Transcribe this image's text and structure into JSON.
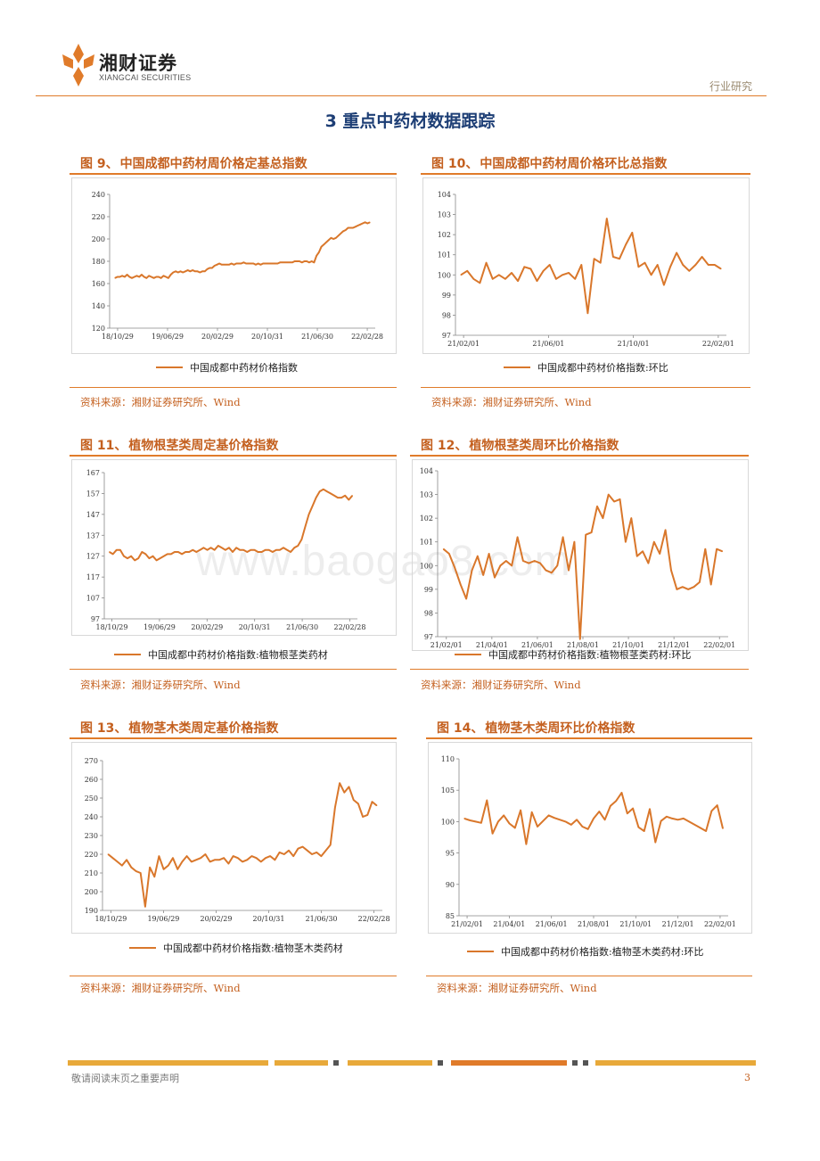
{
  "header": {
    "brand_cn": "湘财证券",
    "brand_en": "XIANGCAI SECURITIES",
    "tag": "行业研究"
  },
  "section_title": "3 重点中药材数据跟踪",
  "colors": {
    "accent": "#e07b2a",
    "line": "#d9772b",
    "title": "#c4601f",
    "navy": "#1d3e75"
  },
  "watermark": "www.baogao8.com",
  "figures": [
    {
      "num": "图 9、",
      "title": "中国成都中药材周价格定基总指数",
      "legend": "中国成都中药材价格指数",
      "source": "资料来源：湘财证券研究所、Wind"
    },
    {
      "num": "图 10、",
      "title": "中国成都中药材周价格环比总指数",
      "legend": "中国成都中药材价格指数:环比",
      "source": "资料来源：湘财证券研究所、Wind"
    },
    {
      "num": "图 11、",
      "title": "植物根茎类周定基价格指数",
      "legend": "中国成都中药材价格指数:植物根茎类药材",
      "source": "资料来源：湘财证券研究所、Wind"
    },
    {
      "num": "图 12、",
      "title": "植物根茎类周环比价格指数",
      "legend": "中国成都中药材价格指数:植物根茎类药材:环比",
      "source": "资料来源：湘财证券研究所、Wind"
    },
    {
      "num": "图 13、",
      "title": "植物茎木类周定基价格指数",
      "legend": "中国成都中药材价格指数:植物茎木类药材",
      "source": "资料来源：湘财证券研究所、Wind"
    },
    {
      "num": "图 14、",
      "title": "植物茎木类周环比价格指数",
      "legend": "中国成都中药材价格指数:植物茎木类药材:环比",
      "source": "资料来源：湘财证券研究所、Wind"
    }
  ],
  "chart_data": [
    {
      "type": "line",
      "ylim": [
        120,
        240
      ],
      "yticks": [
        120,
        140,
        160,
        180,
        200,
        220,
        240
      ],
      "xlim": [
        0,
        1
      ],
      "xtick_labels": [
        "18/10/29",
        "19/06/29",
        "20/02/29",
        "20/10/31",
        "21/06/30",
        "22/02/28"
      ],
      "series": [
        {
          "values": [
            165,
            166,
            166,
            167,
            166,
            168,
            166,
            165,
            166,
            167,
            166,
            168,
            166,
            165,
            167,
            166,
            165,
            166,
            166,
            165,
            167,
            166,
            165,
            168,
            170,
            171,
            170,
            171,
            170,
            171,
            172,
            171,
            172,
            171,
            171,
            170,
            171,
            171,
            173,
            174,
            174,
            176,
            177,
            178,
            177,
            177,
            177,
            177,
            178,
            177,
            178,
            178,
            178,
            179,
            178,
            178,
            178,
            178,
            177,
            178,
            177,
            178,
            178,
            178,
            178,
            178,
            178,
            178,
            179,
            179,
            179,
            179,
            179,
            179,
            180,
            180,
            180,
            179,
            180,
            180,
            179,
            180,
            179,
            185,
            188,
            193,
            195,
            197,
            199,
            201,
            200,
            201,
            203,
            205,
            207,
            208,
            210,
            210,
            210,
            211,
            212,
            213,
            214,
            215,
            214,
            215
          ]
        }
      ]
    },
    {
      "type": "line",
      "ylim": [
        97,
        104
      ],
      "yticks": [
        97,
        98,
        99,
        100,
        101,
        102,
        103,
        104
      ],
      "xlim": [
        0,
        1
      ],
      "xtick_labels": [
        "21/02/01",
        "21/06/01",
        "21/10/01",
        "22/02/01"
      ],
      "series": [
        {
          "values": [
            100.0,
            100.2,
            99.8,
            99.6,
            100.6,
            99.8,
            100.0,
            99.8,
            100.1,
            99.7,
            100.4,
            100.3,
            99.7,
            100.2,
            100.5,
            99.8,
            100.0,
            100.1,
            99.8,
            100.5,
            98.1,
            100.8,
            100.6,
            102.8,
            100.9,
            100.8,
            101.5,
            102.1,
            100.4,
            100.6,
            100.0,
            100.5,
            99.5,
            100.4,
            101.1,
            100.5,
            100.2,
            100.5,
            100.9,
            100.5,
            100.5,
            100.3
          ]
        }
      ]
    },
    {
      "type": "line",
      "ylim": [
        97,
        167
      ],
      "yticks": [
        97,
        107,
        117,
        127,
        137,
        147,
        157,
        167
      ],
      "xlim": [
        0,
        1
      ],
      "xtick_labels": [
        "18/10/29",
        "19/06/29",
        "20/02/29",
        "20/10/31",
        "21/06/30",
        "22/02/28"
      ],
      "series": [
        {
          "values": [
            129,
            128,
            130,
            130,
            127,
            126,
            127,
            125,
            126,
            129,
            128,
            126,
            127,
            125,
            126,
            127,
            128,
            128,
            129,
            129,
            128,
            129,
            129,
            130,
            129,
            130,
            131,
            130,
            131,
            130,
            132,
            131,
            130,
            131,
            129,
            131,
            130,
            130,
            129,
            130,
            130,
            129,
            129,
            130,
            130,
            129,
            130,
            130,
            131,
            130,
            129,
            131,
            132,
            135,
            141,
            147,
            151,
            155,
            158,
            159,
            158,
            157,
            156,
            155,
            155,
            156,
            154,
            156
          ]
        }
      ]
    },
    {
      "type": "line",
      "ylim": [
        97,
        104
      ],
      "yticks": [
        97,
        98,
        99,
        100,
        101,
        102,
        103,
        104
      ],
      "xlim": [
        0,
        1
      ],
      "xtick_labels": [
        "21/02/01",
        "21/04/01",
        "21/06/01",
        "21/08/01",
        "21/10/01",
        "21/12/01",
        "22/02/01"
      ],
      "series": [
        {
          "values": [
            100.7,
            100.5,
            99.9,
            99.2,
            98.6,
            99.8,
            100.4,
            99.6,
            100.5,
            99.5,
            100.0,
            100.2,
            100.0,
            101.2,
            100.2,
            100.1,
            100.2,
            100.1,
            99.8,
            99.7,
            100.0,
            101.2,
            99.8,
            101.0,
            96.9,
            101.3,
            101.4,
            102.5,
            102.0,
            103.0,
            102.7,
            102.8,
            101.0,
            102.0,
            100.4,
            100.6,
            100.1,
            101.0,
            100.5,
            101.5,
            99.8,
            99.0,
            99.1,
            99.0,
            99.1,
            99.3,
            100.7,
            99.2,
            100.7,
            100.6
          ]
        }
      ]
    },
    {
      "type": "line",
      "ylim": [
        190,
        270
      ],
      "yticks": [
        190,
        200,
        210,
        220,
        230,
        240,
        250,
        260,
        270
      ],
      "xlim": [
        0,
        1
      ],
      "xtick_labels": [
        "18/10/29",
        "19/06/29",
        "20/02/29",
        "20/10/31",
        "21/06/30",
        "22/02/28"
      ],
      "series": [
        {
          "values": [
            220,
            218,
            216,
            214,
            217,
            213,
            211,
            210,
            192,
            213,
            208,
            219,
            212,
            214,
            218,
            212,
            216,
            219,
            216,
            217,
            218,
            220,
            216,
            217,
            217,
            218,
            215,
            219,
            218,
            216,
            217,
            219,
            218,
            216,
            218,
            219,
            217,
            221,
            220,
            222,
            219,
            223,
            224,
            222,
            220,
            221,
            219,
            222,
            225,
            245,
            258,
            253,
            256,
            249,
            247,
            240,
            241,
            248,
            246
          ]
        }
      ]
    },
    {
      "type": "line",
      "ylim": [
        85,
        110
      ],
      "yticks": [
        85,
        90,
        95,
        100,
        105,
        110
      ],
      "xlim": [
        0,
        1
      ],
      "xtick_labels": [
        "21/02/01",
        "21/04/01",
        "21/06/01",
        "21/08/01",
        "21/10/01",
        "21/12/01",
        "22/02/01"
      ],
      "series": [
        {
          "values": [
            100.5,
            100.2,
            100.0,
            99.8,
            103.4,
            98.1,
            100.0,
            101.0,
            99.7,
            99.0,
            101.8,
            96.4,
            101.5,
            99.2,
            100.1,
            101.0,
            100.6,
            100.3,
            100.0,
            99.5,
            100.3,
            99.2,
            98.8,
            100.5,
            101.6,
            100.3,
            102.5,
            103.3,
            104.6,
            101.3,
            102.1,
            99.1,
            98.5,
            102.0,
            96.7,
            100.1,
            100.8,
            100.5,
            100.3,
            100.5,
            100.0,
            99.5,
            99.0,
            98.5,
            101.7,
            102.6,
            98.9
          ]
        }
      ]
    }
  ],
  "footer": {
    "note": "敬请阅读末页之重要声明",
    "page": "3"
  }
}
